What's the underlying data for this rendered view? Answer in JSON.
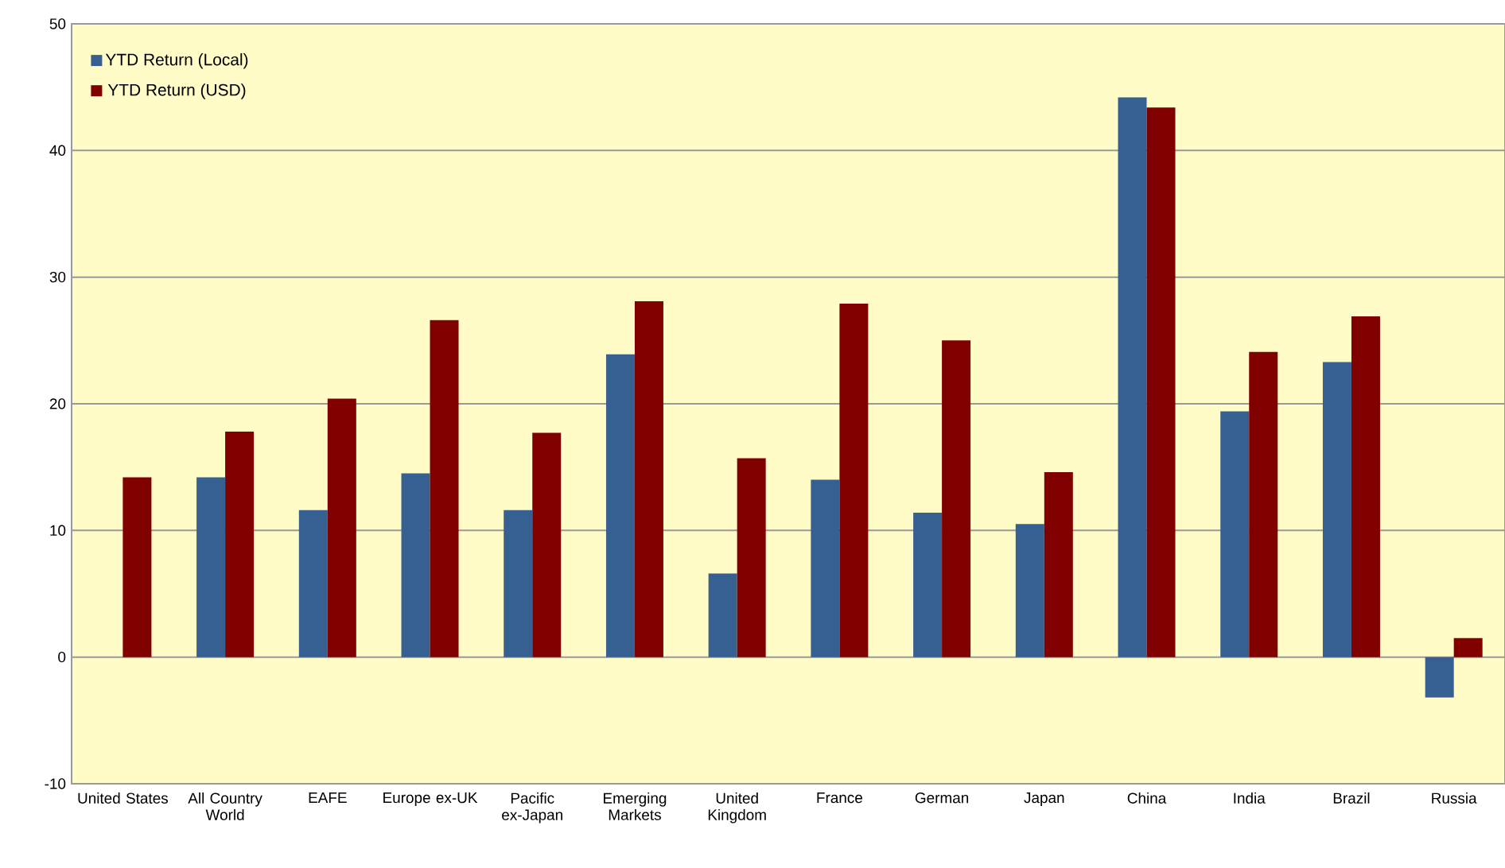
{
  "chart_data": {
    "type": "bar",
    "categories": [
      "United States",
      "All Country World",
      "EAFE",
      "Europe ex-UK",
      "Pacific ex-Japan",
      "Emerging Markets",
      "United Kingdom",
      "France",
      "German",
      "Japan",
      "China",
      "India",
      "Brazil",
      "Russia"
    ],
    "series": [
      {
        "name": "YTD Return (Local)",
        "color": "#376092",
        "values": [
          null,
          14.2,
          11.6,
          14.5,
          11.6,
          23.9,
          6.6,
          14.0,
          11.4,
          10.5,
          44.2,
          19.4,
          23.3,
          -3.2
        ]
      },
      {
        "name": "YTD Return (USD)",
        "color": "#800000",
        "values": [
          14.2,
          17.8,
          20.4,
          26.6,
          17.7,
          28.1,
          15.7,
          27.9,
          25.0,
          14.6,
          43.4,
          24.1,
          26.9,
          1.5
        ]
      }
    ],
    "ylim": [
      -10,
      50
    ],
    "yticks": [
      -10,
      0,
      10,
      20,
      30,
      40,
      50
    ],
    "grid": "y",
    "legend": "top left"
  }
}
